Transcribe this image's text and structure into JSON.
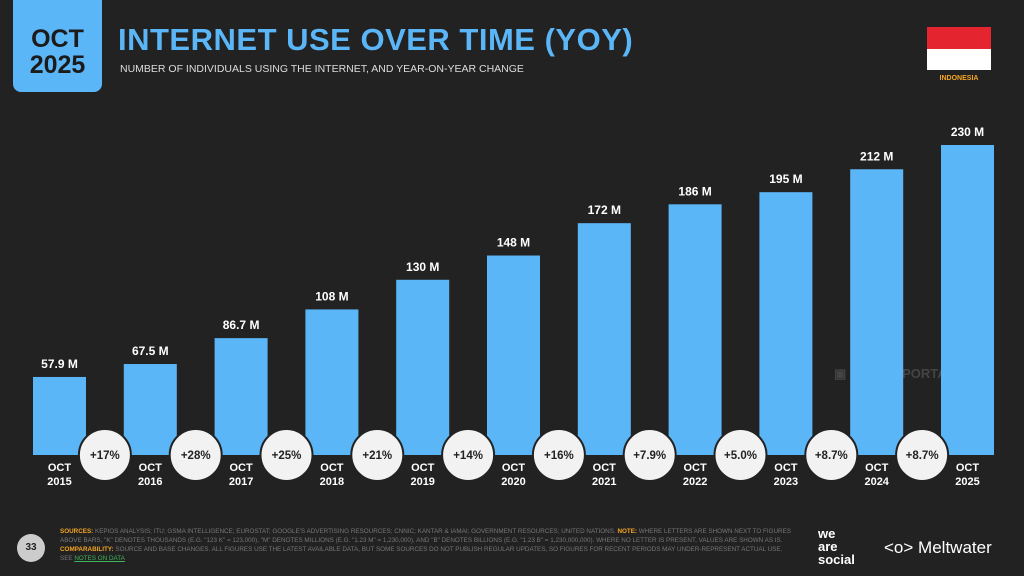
{
  "header": {
    "date_line1": "OCT",
    "date_line2": "2025",
    "title": "INTERNET USE OVER TIME (YOY)",
    "subtitle": "NUMBER OF INDIVIDUALS USING THE INTERNET, AND YEAR-ON-YEAR CHANGE",
    "country": "INDONESIA"
  },
  "chart_data": {
    "type": "bar",
    "title": "INTERNET USE OVER TIME (YOY)",
    "categories": [
      "OCT 2015",
      "OCT 2016",
      "OCT 2017",
      "OCT 2018",
      "OCT 2019",
      "OCT 2020",
      "OCT 2021",
      "OCT 2022",
      "OCT 2023",
      "OCT 2024",
      "OCT 2025"
    ],
    "values": [
      57.9,
      67.5,
      86.7,
      108,
      130,
      148,
      172,
      186,
      195,
      212,
      230
    ],
    "value_labels": [
      "57.9 M",
      "67.5 M",
      "86.7 M",
      "108 M",
      "130 M",
      "148 M",
      "172 M",
      "186 M",
      "195 M",
      "212 M",
      "230 M"
    ],
    "yoy_change": [
      "+17%",
      "+28%",
      "+25%",
      "+21%",
      "+14%",
      "+16%",
      "+7.9%",
      "+5.0%",
      "+8.7%",
      "+8.7%"
    ],
    "unit": "M",
    "bar_color": "#5bb6f8",
    "ylim": [
      0,
      230
    ]
  },
  "watermark": "DATAREPORTAL",
  "footer": {
    "page": "33",
    "sources_label": "SOURCES:",
    "sources": "KEPIOS ANALYSIS; ITU; GSMA INTELLIGENCE; EUROSTAT; GOOGLE'S ADVERTISING RESOURCES; CNNIC; KANTAR & IAMAI; GOVERNMENT RESOURCES; UNITED NATIONS.",
    "note_label": "NOTE:",
    "note": "WHERE LETTERS ARE SHOWN NEXT TO FIGURES ABOVE BARS, \"K\" DENOTES THOUSANDS (E.G. \"123 K\" = 123,000), \"M\" DENOTES MILLIONS (E.G. \"1.23 M\" = 1,230,000), AND \"B\" DENOTES BILLIONS (E.G. \"1.23 B\" = 1,230,000,000). WHERE NO LETTER IS PRESENT, VALUES ARE SHOWN AS IS.",
    "comparability_label": "COMPARABILITY:",
    "comparability": "SOURCE AND BASE CHANGES. ALL FIGURES USE THE LATEST AVAILABLE DATA, BUT SOME SOURCES DO NOT PUBLISH REGULAR UPDATES, SO FIGURES FOR RECENT PERIODS MAY UNDER-REPRESENT ACTUAL USE. SEE",
    "link": "NOTES ON DATA",
    "logo1": "we are social",
    "logo2": "Meltwater"
  }
}
